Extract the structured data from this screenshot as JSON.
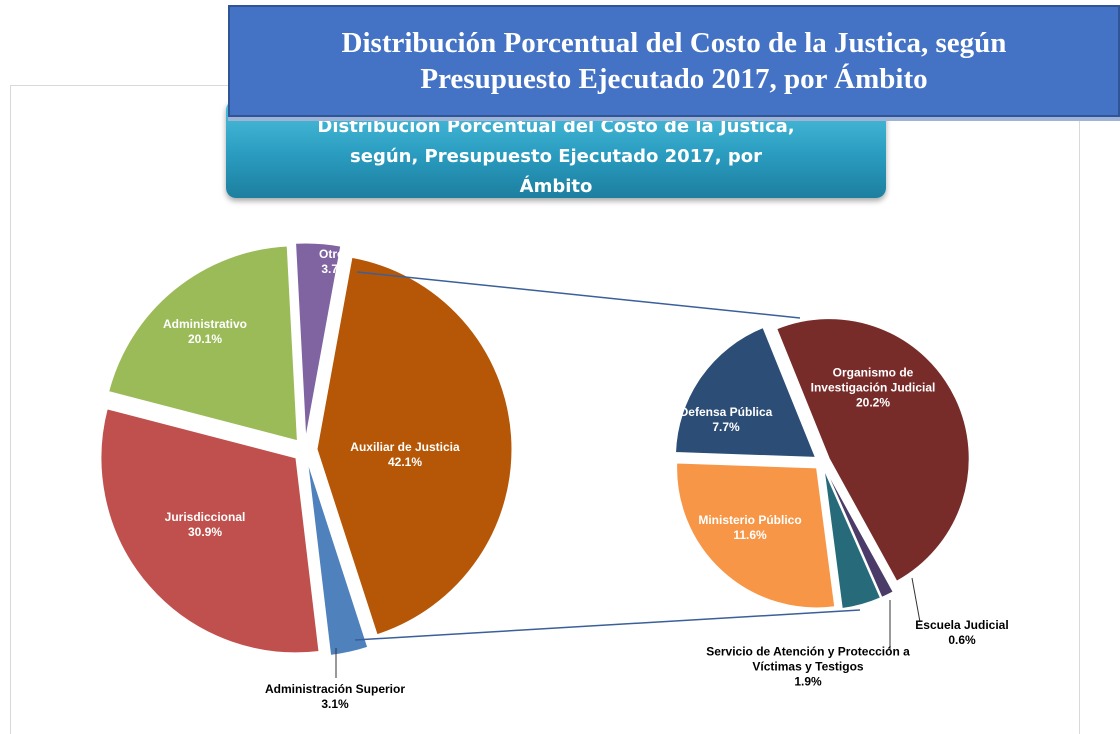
{
  "header": {
    "title": "Distribución Porcentual del Costo de la Justica, según Presupuesto Ejecutado 2017, por Ámbito"
  },
  "chart_data": [
    {
      "type": "pie",
      "title": "Distribución Porcentual del Costo de la Justica, según, Presupuesto Ejecutado 2017, por Ámbito",
      "categories": [
        "Otros",
        "Auxiliar de Justicia",
        "Administración Superior",
        "Jurisdiccional",
        "Administrativo"
      ],
      "values": [
        3.7,
        42.1,
        3.1,
        30.9,
        20.1
      ],
      "value_labels": [
        "3.7%",
        "42.1%",
        "3.1%",
        "30.9%",
        "20.1%"
      ],
      "colors": [
        "#8064a2",
        "#b55706",
        "#4f81bd",
        "#c0504d",
        "#9bbb59"
      ]
    },
    {
      "type": "pie",
      "categories": [
        "Organismo de Investigación Judicial",
        "Escuela Judicial",
        "Servicio de Atención y Protección a Víctimas y Testigos",
        "Ministerio Público",
        "Defensa Pública"
      ],
      "values": [
        20.2,
        0.6,
        1.9,
        11.6,
        7.7
      ],
      "value_labels": [
        "20.2%",
        "0.6%",
        "1.9%",
        "11.6%",
        "7.7%"
      ],
      "colors": [
        "#772c2a",
        "#4b3b68",
        "#276b7a",
        "#f79646",
        "#2c4d75"
      ]
    }
  ]
}
